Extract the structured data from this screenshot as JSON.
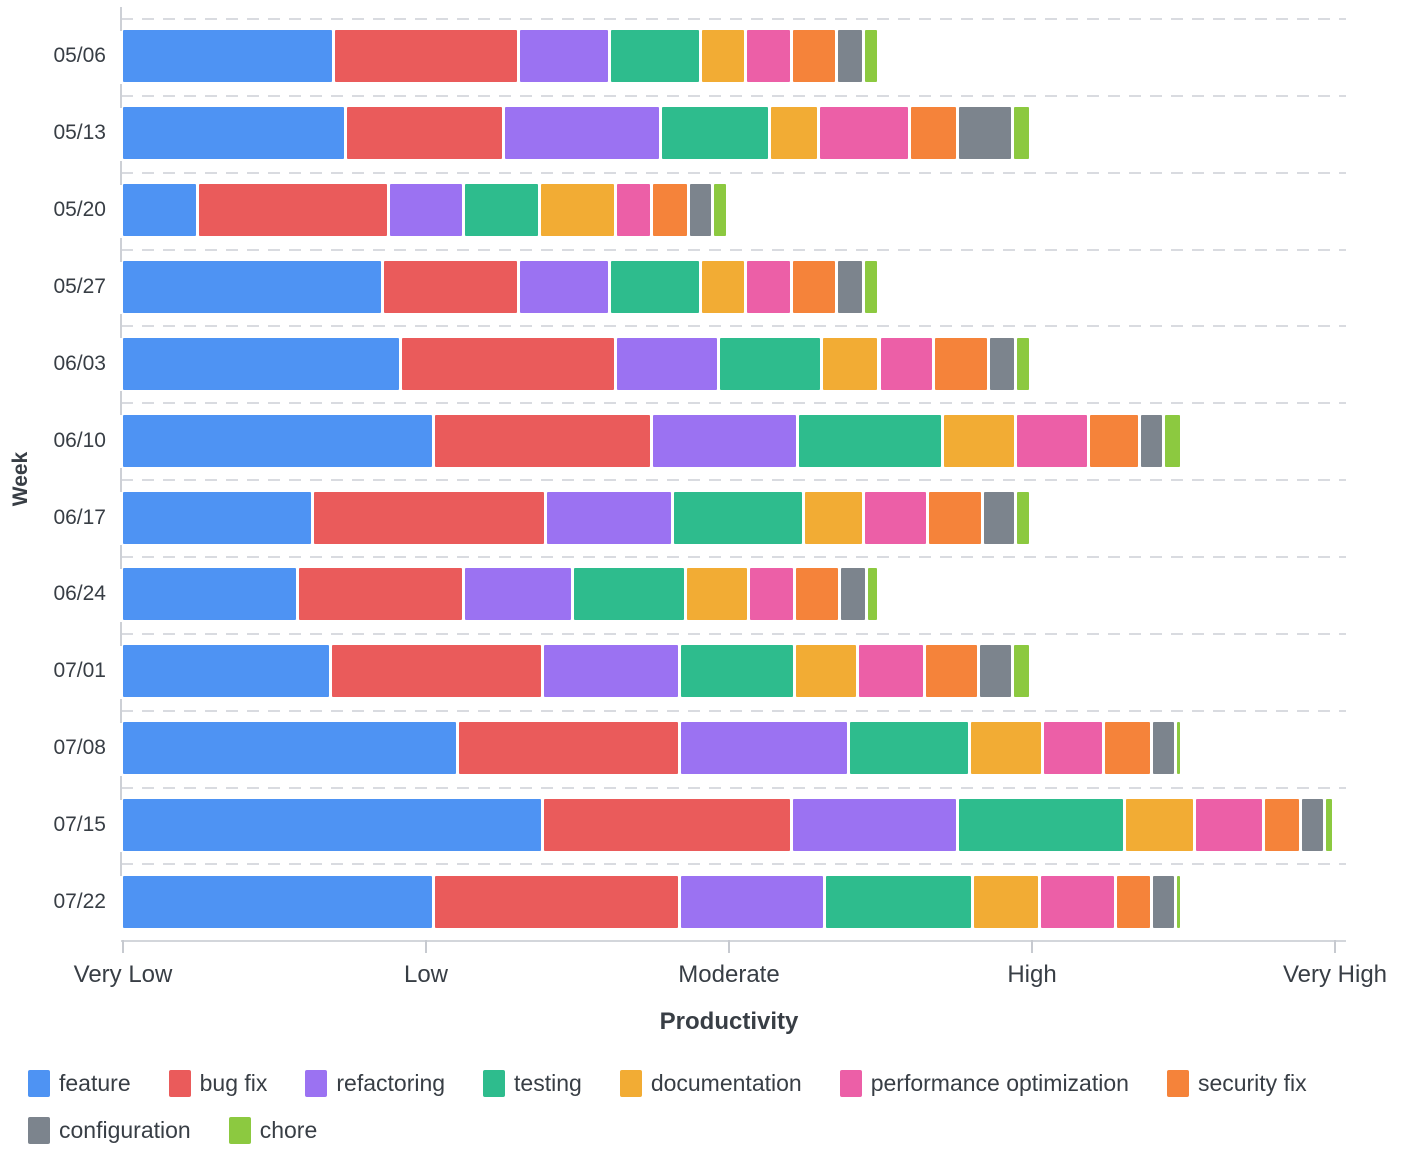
{
  "chart_data": {
    "type": "bar",
    "orientation": "horizontal",
    "stacked": true,
    "title": "",
    "xlabel": "Productivity",
    "ylabel": "Week",
    "categories": [
      "05/06",
      "05/13",
      "05/20",
      "05/27",
      "06/03",
      "06/10",
      "06/17",
      "06/24",
      "07/01",
      "07/08",
      "07/15",
      "07/22"
    ],
    "x_tick_labels": [
      "Very Low",
      "Low",
      "Moderate",
      "High",
      "Very High"
    ],
    "x_range": [
      0,
      4
    ],
    "grid": "dashed-row-separators",
    "legend_position": "bottom",
    "series": [
      {
        "name": "feature",
        "color": "#4E93F3",
        "values": [
          0.7,
          0.74,
          0.25,
          0.86,
          0.92,
          1.03,
          0.63,
          0.58,
          0.69,
          1.11,
          1.39,
          1.03
        ]
      },
      {
        "name": "bug fix",
        "color": "#EA5B5B",
        "values": [
          0.61,
          0.52,
          0.63,
          0.45,
          0.71,
          0.72,
          0.77,
          0.55,
          0.7,
          0.73,
          0.82,
          0.81
        ]
      },
      {
        "name": "refactoring",
        "color": "#9B72F2",
        "values": [
          0.3,
          0.52,
          0.25,
          0.3,
          0.34,
          0.48,
          0.42,
          0.36,
          0.45,
          0.56,
          0.55,
          0.48
        ]
      },
      {
        "name": "testing",
        "color": "#2EBC8D",
        "values": [
          0.3,
          0.36,
          0.25,
          0.3,
          0.34,
          0.48,
          0.43,
          0.37,
          0.38,
          0.4,
          0.55,
          0.49
        ]
      },
      {
        "name": "documentation",
        "color": "#F2AC34",
        "values": [
          0.15,
          0.16,
          0.25,
          0.15,
          0.19,
          0.24,
          0.2,
          0.21,
          0.21,
          0.24,
          0.23,
          0.22
        ]
      },
      {
        "name": "performance optimization",
        "color": "#EC5FA7",
        "values": [
          0.15,
          0.3,
          0.12,
          0.15,
          0.18,
          0.24,
          0.21,
          0.15,
          0.22,
          0.2,
          0.23,
          0.25
        ]
      },
      {
        "name": "security fix",
        "color": "#F5833A",
        "values": [
          0.15,
          0.16,
          0.12,
          0.15,
          0.18,
          0.17,
          0.18,
          0.15,
          0.18,
          0.16,
          0.12,
          0.12
        ]
      },
      {
        "name": "configuration",
        "color": "#7C848D",
        "values": [
          0.09,
          0.18,
          0.08,
          0.09,
          0.09,
          0.08,
          0.11,
          0.09,
          0.11,
          0.08,
          0.08,
          0.08
        ]
      },
      {
        "name": "chore",
        "color": "#8CC940",
        "values": [
          0.05,
          0.06,
          0.05,
          0.05,
          0.05,
          0.06,
          0.05,
          0.04,
          0.06,
          0.02,
          0.03,
          0.02
        ]
      }
    ]
  }
}
